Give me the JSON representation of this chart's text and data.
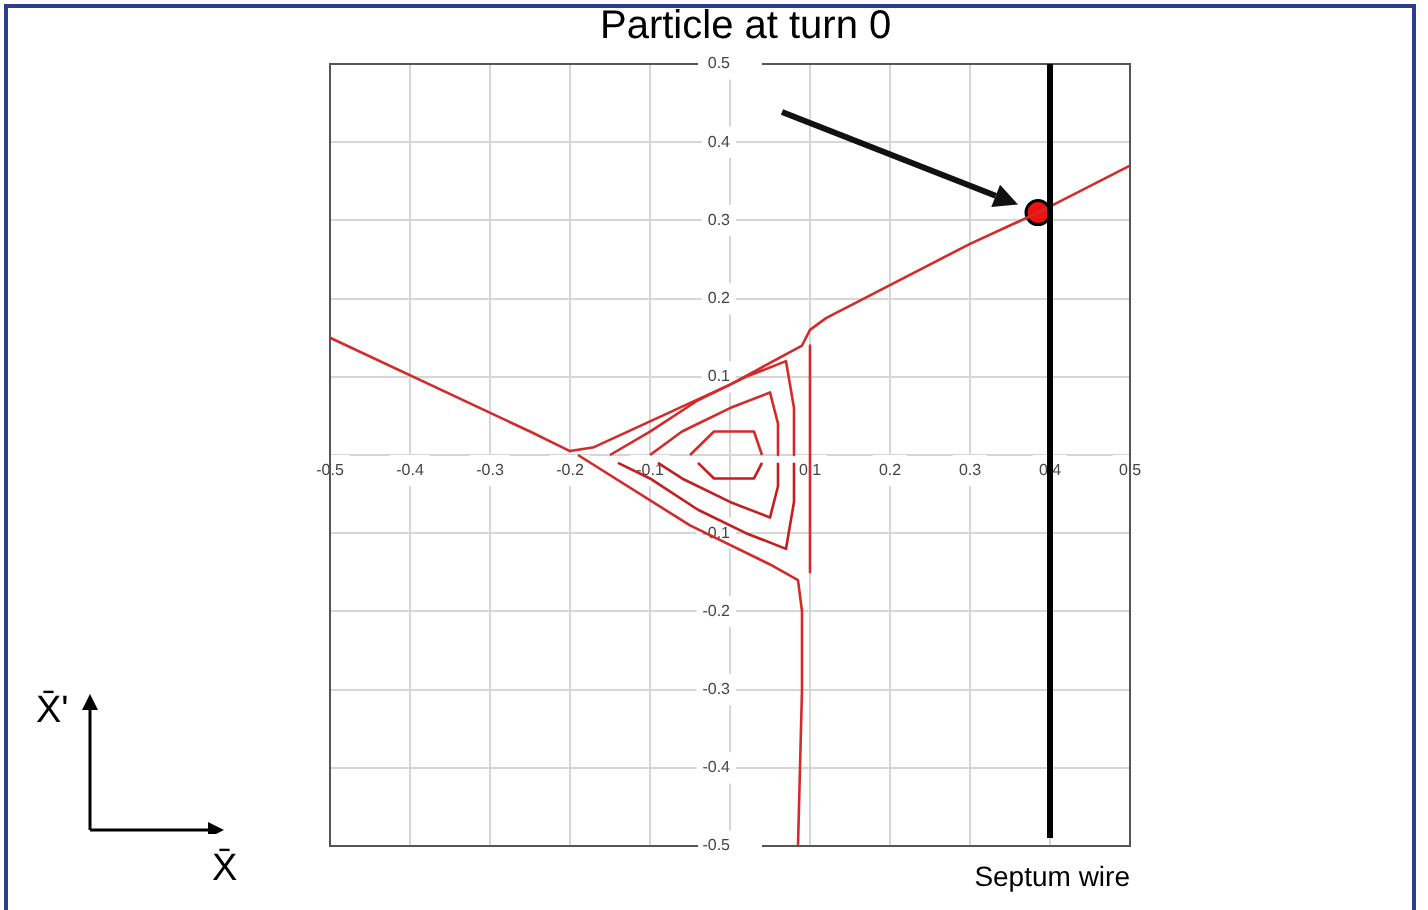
{
  "chart_data": {
    "type": "line",
    "xlim": [
      -0.5,
      0.5
    ],
    "ylim": [
      -0.5,
      0.5
    ],
    "xticks": [
      -0.5,
      -0.4,
      -0.3,
      -0.2,
      -0.1,
      {
        "value": 0,
        "label": null
      },
      0.1,
      0.2,
      0.3,
      0.4,
      0.5
    ],
    "yticks": [
      -0.5,
      -0.4,
      -0.3,
      -0.2,
      -0.1,
      {
        "value": 0,
        "label": null
      },
      0.1,
      0.2,
      0.3,
      0.4,
      0.5
    ],
    "grid": true,
    "legend": false,
    "line_style": "solid",
    "series": [
      {
        "color": "#d42a2a",
        "x": [
          -0.5,
          -0.25,
          -0.2,
          -0.17,
          0.0,
          0.09,
          0.1,
          0.12,
          0.3,
          0.385,
          0.5
        ],
        "values": [
          0.15,
          0.03,
          0.005,
          0.01,
          0.09,
          0.14,
          0.16,
          0.175,
          0.27,
          0.31,
          0.37
        ]
      },
      {
        "color": "#d42a2a",
        "x": [
          -0.19,
          -0.05,
          0.05,
          0.085,
          0.09,
          0.09,
          0.085
        ],
        "values": [
          0.0,
          -0.09,
          -0.14,
          -0.16,
          -0.2,
          -0.3,
          -0.5
        ]
      },
      {
        "color": "#d42a2a",
        "x": [
          0.1,
          0.1,
          0.1
        ],
        "values": [
          0.14,
          0.0,
          -0.15
        ]
      },
      {
        "color": "#d42a2a",
        "x": [
          -0.15,
          -0.1,
          -0.04,
          0.02,
          0.07,
          0.08,
          0.08
        ],
        "values": [
          0,
          0.03,
          0.07,
          0.1,
          0.12,
          0.06,
          0
        ]
      },
      {
        "color": "#c41e1e",
        "x": [
          -0.14,
          -0.1,
          -0.04,
          0.02,
          0.07,
          0.08,
          0.08
        ],
        "values": [
          -0.01,
          -0.03,
          -0.07,
          -0.1,
          -0.12,
          -0.06,
          -0.01
        ]
      },
      {
        "color": "#d42a2a",
        "x": [
          -0.1,
          -0.06,
          0.0,
          0.05,
          0.06,
          0.06
        ],
        "values": [
          0,
          0.03,
          0.06,
          0.08,
          0.04,
          0
        ]
      },
      {
        "color": "#c41e1e",
        "x": [
          -0.09,
          -0.06,
          0.0,
          0.05,
          0.06,
          0.06
        ],
        "values": [
          -0.01,
          -0.03,
          -0.06,
          -0.08,
          -0.04,
          -0.01
        ]
      },
      {
        "color": "#d42a2a",
        "x": [
          -0.05,
          -0.02,
          0.03,
          0.04
        ],
        "values": [
          0,
          0.03,
          0.03,
          0
        ]
      },
      {
        "color": "#c41e1e",
        "x": [
          -0.04,
          -0.02,
          0.03,
          0.04
        ],
        "values": [
          -0.01,
          -0.03,
          -0.03,
          -0.01
        ]
      },
      {
        "type": "scatter",
        "color": "#ee1111",
        "marker": "circle",
        "x": [
          0.385
        ],
        "values": [
          0.31
        ]
      }
    ],
    "ref_lines": [
      {
        "axis": "x",
        "value": 0.4,
        "label": "Septum wire",
        "color": "#000000"
      }
    ],
    "annotations": [
      "Particle at turn 0",
      "X̄'",
      "X̄"
    ]
  }
}
